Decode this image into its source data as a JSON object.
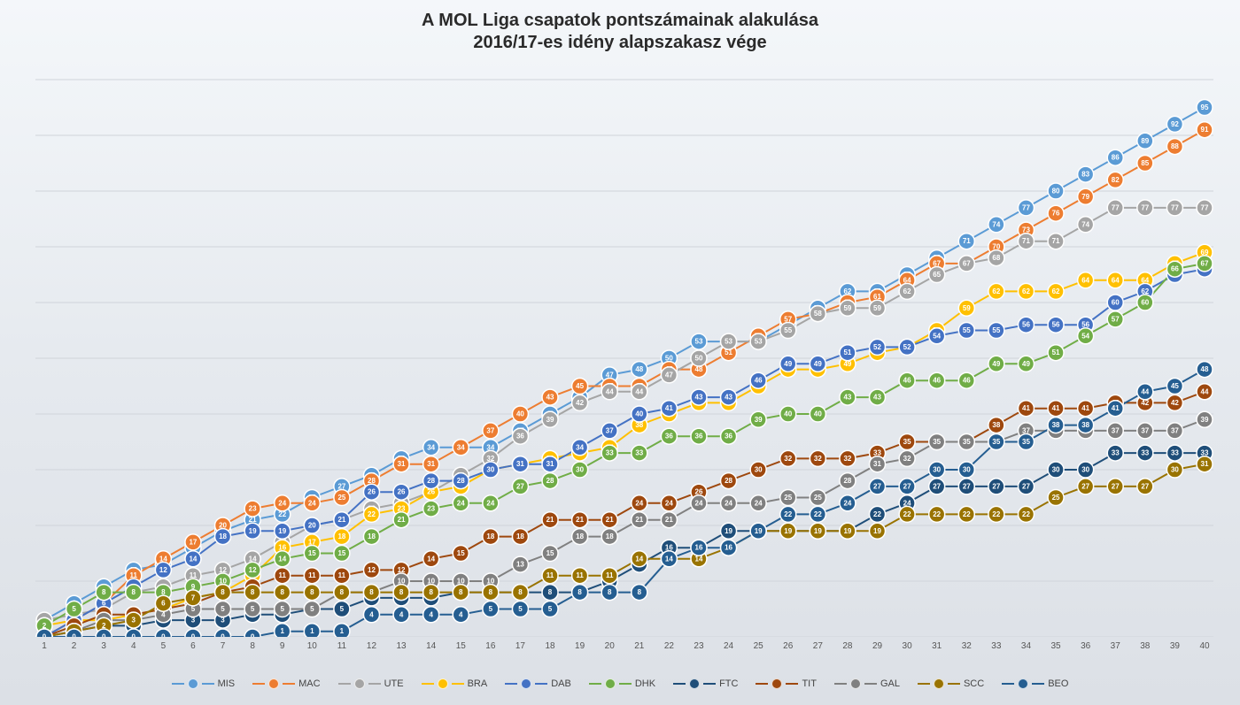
{
  "title_line1": "A MOL Liga csapatok pontszámainak alakulása",
  "title_line2": "2016/17-es idény alapszakasz vége",
  "chart": {
    "type": "line",
    "background": "linear-gradient(180deg,#f4f7fa,#e6eaef,#dce0e6)",
    "gridline_color": "#d0d4da",
    "marker_radius": 9,
    "marker_border_color": "#ffffff",
    "marker_border_width": 1.5,
    "line_width": 2,
    "label_font_size": 8,
    "label_color": "#ffffff",
    "x_axis": {
      "min": 1,
      "max": 40,
      "step": 1,
      "label_fontsize": 10,
      "label_color": "#555555"
    },
    "y_axis": {
      "min": 0,
      "max": 100,
      "grid_step": 10
    },
    "series": [
      {
        "name": "MIS",
        "color": "#5B9BD5",
        "data": [
          3,
          6,
          9,
          12,
          13,
          16,
          19,
          21,
          22,
          25,
          27,
          29,
          32,
          34,
          34,
          34,
          37,
          40,
          43,
          47,
          48,
          50,
          53,
          53,
          53,
          56,
          59,
          62,
          62,
          65,
          68,
          71,
          74,
          77,
          80,
          83,
          86,
          89,
          92,
          95
        ]
      },
      {
        "name": "MAC",
        "color": "#ED7D31",
        "data": [
          0,
          3,
          6,
          11,
          14,
          17,
          20,
          23,
          24,
          24,
          25,
          28,
          31,
          31,
          34,
          37,
          40,
          43,
          45,
          45,
          45,
          48,
          48,
          51,
          54,
          57,
          58,
          60,
          61,
          64,
          67,
          67,
          70,
          73,
          76,
          79,
          82,
          85,
          88,
          91
        ]
      },
      {
        "name": "UTE",
        "color": "#A5A5A5",
        "data": [
          3,
          4,
          5,
          8,
          9,
          11,
          12,
          14,
          17,
          20,
          21,
          23,
          24,
          26,
          29,
          32,
          36,
          39,
          42,
          44,
          44,
          47,
          50,
          53,
          53,
          55,
          58,
          59,
          59,
          62,
          65,
          67,
          68,
          71,
          71,
          74,
          77,
          77,
          77,
          77
        ]
      },
      {
        "name": "BRA",
        "color": "#FFC000",
        "data": [
          2,
          3,
          3,
          4,
          5,
          7,
          8,
          11,
          16,
          17,
          18,
          22,
          23,
          26,
          27,
          30,
          31,
          32,
          33,
          34,
          38,
          40,
          42,
          42,
          45,
          48,
          48,
          49,
          51,
          52,
          55,
          59,
          62,
          62,
          62,
          64,
          64,
          64,
          67,
          69
        ]
      },
      {
        "name": "DAB",
        "color": "#4472C4",
        "data": [
          0,
          3,
          6,
          9,
          12,
          14,
          18,
          19,
          19,
          20,
          21,
          26,
          26,
          28,
          28,
          30,
          31,
          31,
          34,
          37,
          40,
          41,
          43,
          43,
          46,
          49,
          49,
          51,
          52,
          52,
          54,
          55,
          55,
          56,
          56,
          56,
          60,
          62,
          65,
          66
        ]
      },
      {
        "name": "DHK",
        "color": "#70AD47",
        "data": [
          2,
          5,
          8,
          8,
          8,
          9,
          10,
          12,
          14,
          15,
          15,
          18,
          21,
          23,
          24,
          24,
          27,
          28,
          30,
          33,
          33,
          36,
          36,
          36,
          39,
          40,
          40,
          43,
          43,
          46,
          46,
          46,
          49,
          49,
          51,
          54,
          57,
          60,
          66,
          67
        ]
      },
      {
        "name": "FTC",
        "color": "#1F4E79",
        "data": [
          0,
          1,
          2,
          2,
          3,
          3,
          3,
          4,
          4,
          5,
          5,
          7,
          7,
          7,
          8,
          8,
          8,
          8,
          8,
          10,
          13,
          16,
          16,
          19,
          19,
          19,
          19,
          19,
          22,
          24,
          27,
          27,
          27,
          27,
          30,
          30,
          33,
          33,
          33,
          33
        ]
      },
      {
        "name": "TIT",
        "color": "#9E480E",
        "data": [
          0,
          2,
          4,
          4,
          5,
          6,
          8,
          9,
          11,
          11,
          11,
          12,
          12,
          14,
          15,
          18,
          18,
          21,
          21,
          21,
          24,
          24,
          26,
          28,
          30,
          32,
          32,
          32,
          33,
          35,
          35,
          35,
          38,
          41,
          41,
          41,
          42,
          42,
          42,
          44
        ]
      },
      {
        "name": "GAL",
        "color": "#808080",
        "data": [
          0,
          1,
          3,
          3,
          4,
          5,
          5,
          5,
          5,
          5,
          8,
          8,
          10,
          10,
          10,
          10,
          13,
          15,
          18,
          18,
          21,
          21,
          24,
          24,
          24,
          25,
          25,
          28,
          31,
          32,
          35,
          35,
          35,
          37,
          37,
          37,
          37,
          37,
          37,
          39
        ]
      },
      {
        "name": "SCC",
        "color": "#997300",
        "data": [
          0,
          1,
          2,
          3,
          6,
          7,
          8,
          8,
          8,
          8,
          8,
          8,
          8,
          8,
          8,
          8,
          8,
          11,
          11,
          11,
          14,
          14,
          14,
          16,
          19,
          19,
          19,
          19,
          19,
          22,
          22,
          22,
          22,
          22,
          25,
          27,
          27,
          27,
          30,
          31
        ]
      },
      {
        "name": "BEO",
        "color": "#255E91",
        "data": [
          0,
          0,
          0,
          0,
          0,
          0,
          0,
          0,
          1,
          1,
          1,
          4,
          4,
          4,
          4,
          5,
          5,
          5,
          8,
          8,
          8,
          14,
          16,
          16,
          19,
          22,
          22,
          24,
          27,
          27,
          30,
          30,
          35,
          35,
          38,
          38,
          41,
          44,
          45,
          48
        ]
      }
    ],
    "legend": {
      "position": "bottom",
      "font_size": 11,
      "text_color": "#444444",
      "items": [
        "MIS",
        "MAC",
        "UTE",
        "BRA",
        "DAB",
        "DHK",
        "FTC",
        "TIT",
        "GAL",
        "SCC",
        "BEO"
      ]
    }
  }
}
